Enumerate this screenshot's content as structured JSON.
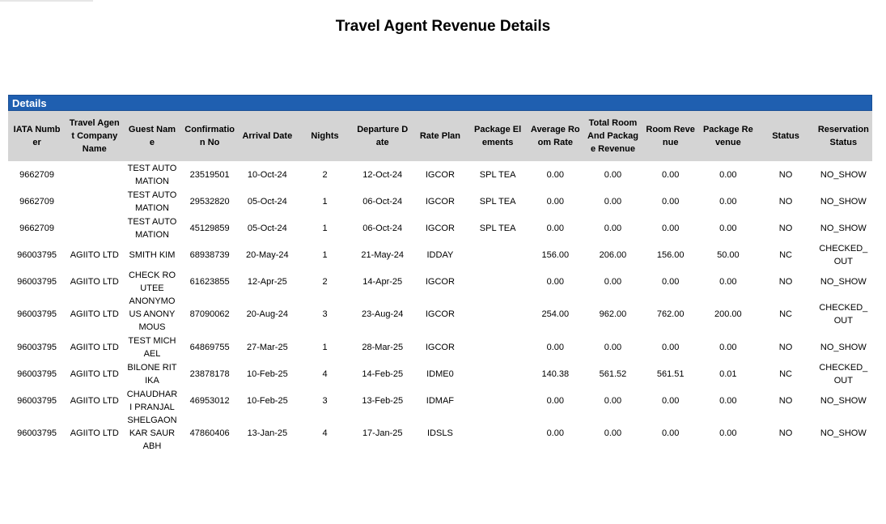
{
  "header": {
    "title": "Travel Agent Revenue Details"
  },
  "table": {
    "section": "Details",
    "columns": [
      "IATA Number",
      "Travel Agent Company Name",
      "Guest Name",
      "Confirmation No",
      "Arrival Date",
      "Nights",
      "Departure Date",
      "Rate Plan",
      "Package Elements",
      "Average Room Rate",
      "Total Room And Package Revenue",
      "Room Revenue",
      "Package Revenue",
      "Status",
      "Reservation Status"
    ],
    "rows": [
      [
        "9662709",
        null,
        "TEST AUTOMATION",
        "23519501",
        "10-Oct-24",
        "2",
        "12-Oct-24",
        "IGCOR",
        "SPL TEA",
        "0.00",
        "0.00",
        "0.00",
        "0.00",
        "NO",
        "NO_SHOW"
      ],
      [
        "9662709",
        null,
        "TEST AUTOMATION",
        "29532820",
        "05-Oct-24",
        "1",
        "06-Oct-24",
        "IGCOR",
        "SPL TEA",
        "0.00",
        "0.00",
        "0.00",
        "0.00",
        "NO",
        "NO_SHOW"
      ],
      [
        "9662709",
        null,
        "TEST AUTOMATION",
        "45129859",
        "05-Oct-24",
        "1",
        "06-Oct-24",
        "IGCOR",
        "SPL TEA",
        "0.00",
        "0.00",
        "0.00",
        "0.00",
        "NO",
        "NO_SHOW"
      ],
      [
        "96003795",
        "AGIITO LTD",
        "SMITH KIM",
        "68938739",
        "20-May-24",
        "1",
        "21-May-24",
        "IDDAY",
        null,
        "156.00",
        "206.00",
        "156.00",
        "50.00",
        "NC",
        "CHECKED_OUT"
      ],
      [
        "96003795",
        "AGIITO LTD",
        "CHECK ROUTEE",
        "61623855",
        "12-Apr-25",
        "2",
        "14-Apr-25",
        "IGCOR",
        null,
        "0.00",
        "0.00",
        "0.00",
        "0.00",
        "NO",
        "NO_SHOW"
      ],
      [
        "96003795",
        "AGIITO LTD",
        "ANONYMOUS ANONYMOUS",
        "87090062",
        "20-Aug-24",
        "3",
        "23-Aug-24",
        "IGCOR",
        null,
        "254.00",
        "962.00",
        "762.00",
        "200.00",
        "NC",
        "CHECKED_OUT"
      ],
      [
        "96003795",
        "AGIITO LTD",
        "TEST MICHAEL",
        "64869755",
        "27-Mar-25",
        "1",
        "28-Mar-25",
        "IGCOR",
        null,
        "0.00",
        "0.00",
        "0.00",
        "0.00",
        "NO",
        "NO_SHOW"
      ],
      [
        "96003795",
        "AGIITO LTD",
        "BILONE RITIKA",
        "23878178",
        "10-Feb-25",
        "4",
        "14-Feb-25",
        "IDME0",
        null,
        "140.38",
        "561.52",
        "561.51",
        "0.01",
        "NC",
        "CHECKED_OUT"
      ],
      [
        "96003795",
        "AGIITO LTD",
        "CHAUDHARI PRANJAL",
        "46953012",
        "10-Feb-25",
        "3",
        "13-Feb-25",
        "IDMAF",
        null,
        "0.00",
        "0.00",
        "0.00",
        "0.00",
        "NO",
        "NO_SHOW"
      ],
      [
        "96003795",
        "AGIITO LTD",
        "SHELGAONKAR SAURABH",
        "47860406",
        "13-Jan-25",
        "4",
        "17-Jan-25",
        "IDSLS",
        null,
        "0.00",
        "0.00",
        "0.00",
        "0.00",
        "NO",
        "NO_SHOW"
      ]
    ]
  }
}
